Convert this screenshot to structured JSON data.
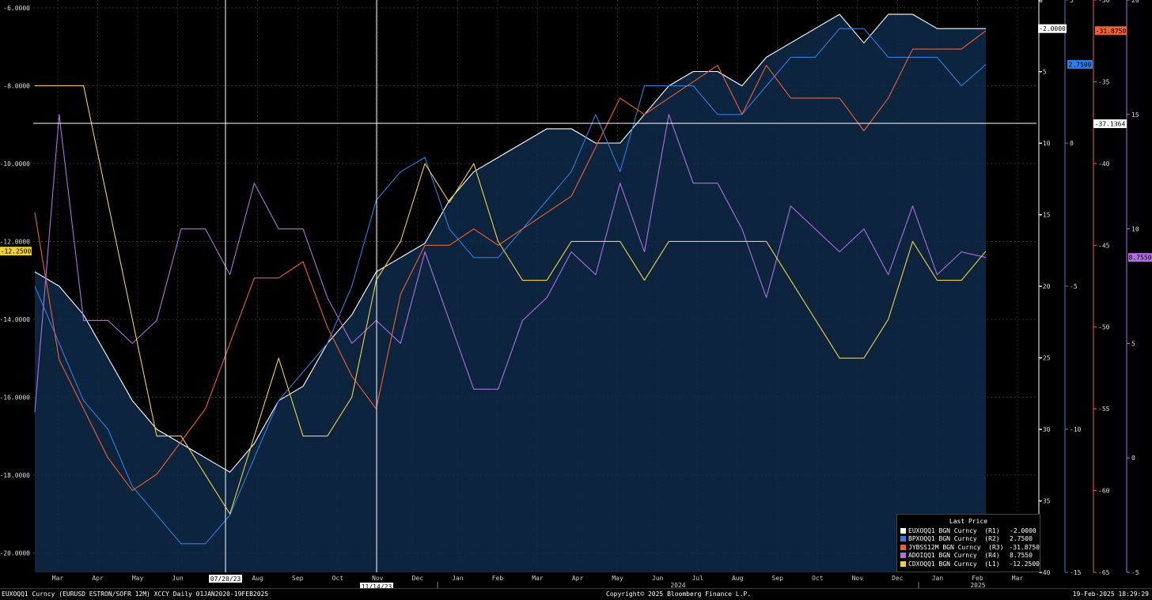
{
  "footer": {
    "left": "EUXOQQ1 Curncy (EURUSD  ESTRON/SOFR 12M) XCCY  Daily 01JAN2020-19FEB2025",
    "copyright": "Copyright© 2025 Bloomberg Finance L.P.",
    "timestamp": "19-Feb-2025 18:29:29"
  },
  "legend": {
    "title": "Last Price",
    "entries": [
      {
        "label": "EUXOQQ1 BGN Curncy  (R1)",
        "value": "-2.0000",
        "color": "#ffffff"
      },
      {
        "label": "BPXOQQ1 BGN Curncy  (R2)",
        "value": "2.7500",
        "color": "#2f7fe0"
      },
      {
        "label": "JYBSS12M BGN Curncy  (R3)",
        "value": "-31.8750",
        "color": "#f06030"
      },
      {
        "label": "ADOIQQ1 BGN Curncy  (R4)",
        "value": "8.7550",
        "color": "#b070e0"
      },
      {
        "label": "CDXOQQ1 BGN Curncy  (L1)",
        "value": "-12.2500",
        "color": "#f0d040"
      }
    ]
  },
  "chart_data": {
    "type": "line",
    "x_ticks": [
      "Mar",
      "Apr",
      "May",
      "Jun",
      "Jul",
      "Aug",
      "Sep",
      "Oct",
      "Nov",
      "Dec",
      "Jan",
      "Feb",
      "Mar",
      "Apr",
      "May",
      "Jun",
      "Jul",
      "Aug",
      "Sep",
      "Oct",
      "Nov",
      "Dec",
      "Jan",
      "Feb",
      "Mar"
    ],
    "year_labels": [
      "2024",
      "2025"
    ],
    "crosshair_dates": [
      "07/20/23",
      "11/14/23"
    ],
    "crosshair_value": "-37.1364",
    "axes": {
      "L1": {
        "ylim": [
          -20.5,
          -5.8
        ],
        "ticks": [
          "-6.0000",
          "-8.0000",
          "-10.0000",
          "-12.0000",
          "-14.0000",
          "-16.0000",
          "-18.0000",
          "-20.0000"
        ],
        "color": "#ffffff"
      },
      "R1": {
        "ylim": [
          -40,
          0
        ],
        "ticks": [
          "0",
          "-5",
          "-10",
          "-15",
          "-20",
          "-25",
          "-30",
          "-35",
          "-40"
        ],
        "color": "#ffffff"
      },
      "R2": {
        "ylim": [
          -15,
          5
        ],
        "ticks": [
          "5",
          "0",
          "-5",
          "-10",
          "-15"
        ],
        "color": "#2f7fe0"
      },
      "R3": {
        "ylim": [
          -65,
          -30
        ],
        "ticks": [
          "-30",
          "-35",
          "-40",
          "-45",
          "-50",
          "-55",
          "-60",
          "-65"
        ],
        "color": "#f06030"
      },
      "R4": {
        "ylim": [
          -5,
          20
        ],
        "ticks": [
          "20",
          "15",
          "10",
          "5",
          "0",
          "-5"
        ],
        "color": "#b070e0"
      }
    },
    "last_values": {
      "L1": {
        "text": "-12.2500",
        "color": "#f0d040"
      },
      "R1": {
        "text": "-2.0000",
        "color": "#ffffff"
      },
      "R2": {
        "text": "2.7500",
        "color": "#2f7fe0"
      },
      "R3": {
        "text": "-31.8750",
        "color": "#f06030"
      },
      "R4": {
        "text": "8.7550",
        "color": "#b070e0"
      }
    },
    "series": [
      {
        "name": "EUXOQQ1 BGN Curncy",
        "axis": "R1",
        "color": "#ffffff",
        "fill": true,
        "values": [
          -19,
          -20,
          -22,
          -25,
          -28,
          -30,
          -31,
          -32,
          -33,
          -31,
          -28,
          -27,
          -24,
          -22,
          -19,
          -18,
          -17,
          -14,
          -12,
          -11,
          -10,
          -9,
          -9,
          -10,
          -10,
          -8,
          -6,
          -5,
          -5,
          -6,
          -4,
          -3,
          -2,
          -1,
          -3,
          -1,
          -1,
          -2,
          -2,
          -2
        ]
      },
      {
        "name": "BPXOQQ1 BGN Curncy",
        "axis": "R2",
        "color": "#2f7fe0",
        "values": [
          -5,
          -7,
          -9,
          -10,
          -12,
          -13,
          -14,
          -14,
          -13,
          -11,
          -9,
          -8,
          -7,
          -5,
          -2,
          -1,
          -0.5,
          -3,
          -4,
          -4,
          -3,
          -2,
          -1,
          1,
          -1,
          2,
          2,
          2,
          1,
          1,
          2,
          3,
          3,
          4,
          4,
          3,
          3,
          3,
          2,
          2.75
        ]
      },
      {
        "name": "JYBSS12M BGN Curncy",
        "axis": "R3",
        "color": "#f06030",
        "values": [
          -43,
          -52,
          -55,
          -58,
          -60,
          -59,
          -57,
          -55,
          -51,
          -47,
          -47,
          -46,
          -50,
          -53,
          -55,
          -48,
          -45,
          -45,
          -44,
          -45,
          -44,
          -43,
          -42,
          -39,
          -36,
          -37,
          -36,
          -35,
          -34,
          -37,
          -34,
          -36,
          -36,
          -36,
          -38,
          -36,
          -33,
          -33,
          -33,
          -31.875
        ]
      },
      {
        "name": "ADOIQQ1 BGN Curncy",
        "axis": "R4",
        "color": "#b070e0",
        "values": [
          2,
          15,
          6,
          6,
          5,
          6,
          10,
          10,
          8,
          12,
          10,
          10,
          7,
          5,
          6,
          5,
          9,
          6,
          3,
          3,
          6,
          7,
          9,
          8,
          12,
          9,
          15,
          12,
          12,
          10,
          7,
          11,
          10,
          9,
          10,
          8,
          11,
          8,
          9,
          8.755
        ]
      },
      {
        "name": "CDXOQQ1 BGN Curncy",
        "axis": "L1",
        "color": "#f0d040",
        "values": [
          -8,
          -8,
          -8,
          -11,
          -14,
          -17,
          -17,
          -18,
          -19,
          -17,
          -15,
          -17,
          -17,
          -16,
          -13,
          -12,
          -10,
          -11,
          -10,
          -12,
          -13,
          -13,
          -12,
          -12,
          -12,
          -13,
          -12,
          -12,
          -12,
          -12,
          -12,
          -13,
          -14,
          -15,
          -15,
          -14,
          -12,
          -13,
          -13,
          -12.25
        ]
      }
    ]
  }
}
